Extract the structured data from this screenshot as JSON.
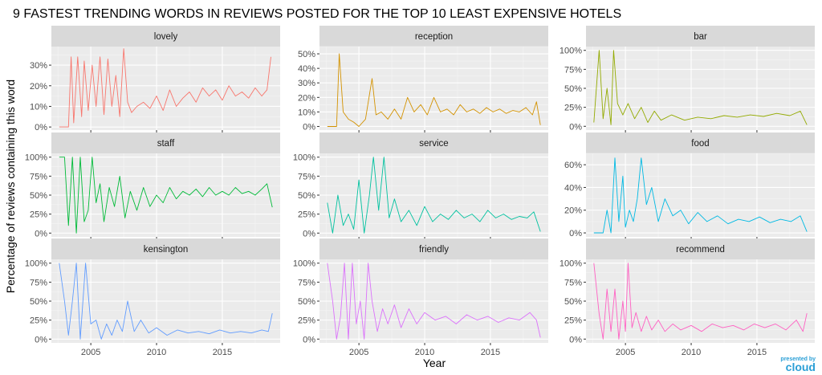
{
  "chart_data": {
    "type": "line",
    "title": "9 FASTEST TRENDING WORDS IN REVIEWS POSTED FOR THE TOP 10 LEAST EXPENSIVE HOTELS",
    "xlabel": "Year",
    "ylabel": "Percentage of reviews containing this word",
    "xlim": [
      2002,
      2019.4
    ],
    "x_ticks": [
      2005,
      2010,
      2015
    ],
    "x_tick_labels": [
      "2005",
      "2010",
      "2015"
    ],
    "grid": true,
    "legend": "none",
    "facet_layout": {
      "columns": 3,
      "rows": 3
    },
    "panels": [
      {
        "word": "lovely",
        "color": "#f8766d",
        "ylim": [
          -0.015,
          0.39
        ],
        "y_ticks": [
          0,
          0.1,
          0.2,
          0.3
        ],
        "y_tick_labels": [
          "0%",
          "10%",
          "20%",
          "30%"
        ],
        "x": [
          2002.6,
          2003.3,
          2003.5,
          2003.7,
          2004.0,
          2004.3,
          2004.5,
          2004.8,
          2005.1,
          2005.4,
          2005.7,
          2006.0,
          2006.3,
          2006.6,
          2006.9,
          2007.2,
          2007.5,
          2007.8,
          2008.1,
          2008.5,
          2009.0,
          2009.5,
          2010.0,
          2010.5,
          2011.0,
          2011.5,
          2012.0,
          2012.5,
          2013.0,
          2013.5,
          2014.0,
          2014.5,
          2015.0,
          2015.5,
          2016.0,
          2016.5,
          2017.0,
          2017.5,
          2018.0,
          2018.4,
          2018.7
        ],
        "y": [
          0,
          0,
          0.34,
          0.02,
          0.34,
          0.05,
          0.32,
          0.08,
          0.3,
          0.1,
          0.34,
          0.06,
          0.33,
          0.1,
          0.25,
          0.05,
          0.38,
          0.12,
          0.07,
          0.1,
          0.12,
          0.09,
          0.15,
          0.08,
          0.18,
          0.1,
          0.14,
          0.17,
          0.12,
          0.19,
          0.15,
          0.18,
          0.13,
          0.2,
          0.15,
          0.17,
          0.14,
          0.19,
          0.15,
          0.18,
          0.34
        ]
      },
      {
        "word": "reception",
        "color": "#d39200",
        "ylim": [
          -0.025,
          0.55
        ],
        "y_ticks": [
          0,
          0.1,
          0.2,
          0.3,
          0.4,
          0.5
        ],
        "y_tick_labels": [
          "0%",
          "10%",
          "20%",
          "30%",
          "40%",
          "50%"
        ],
        "x": [
          2002.6,
          2003.3,
          2003.5,
          2003.8,
          2004.2,
          2004.6,
          2005.0,
          2005.5,
          2006.0,
          2006.3,
          2006.7,
          2007.2,
          2007.7,
          2008.2,
          2008.7,
          2009.2,
          2009.7,
          2010.2,
          2010.7,
          2011.2,
          2011.7,
          2012.2,
          2012.7,
          2013.2,
          2013.7,
          2014.2,
          2014.7,
          2015.2,
          2015.7,
          2016.2,
          2016.7,
          2017.2,
          2017.7,
          2018.2,
          2018.5,
          2018.8
        ],
        "y": [
          0,
          0,
          0.5,
          0.1,
          0.05,
          0.03,
          0.0,
          0.05,
          0.33,
          0.08,
          0.1,
          0.05,
          0.12,
          0.05,
          0.2,
          0.1,
          0.15,
          0.08,
          0.2,
          0.1,
          0.12,
          0.08,
          0.15,
          0.1,
          0.12,
          0.09,
          0.13,
          0.1,
          0.12,
          0.09,
          0.11,
          0.1,
          0.13,
          0.08,
          0.17,
          0.01
        ]
      },
      {
        "word": "bar",
        "color": "#93aa00",
        "ylim": [
          -0.05,
          1.05
        ],
        "y_ticks": [
          0,
          0.25,
          0.5,
          0.75,
          1.0
        ],
        "y_tick_labels": [
          "0%",
          "25%",
          "50%",
          "75%",
          "100%"
        ],
        "x": [
          2002.6,
          2003.0,
          2003.3,
          2003.6,
          2003.9,
          2004.1,
          2004.4,
          2004.8,
          2005.2,
          2005.7,
          2006.2,
          2006.7,
          2007.2,
          2007.7,
          2008.5,
          2009.5,
          2010.5,
          2011.5,
          2012.5,
          2013.5,
          2014.5,
          2015.5,
          2016.5,
          2017.5,
          2018.3,
          2018.8
        ],
        "y": [
          0.05,
          1.0,
          0.1,
          0.5,
          0.02,
          1.0,
          0.3,
          0.15,
          0.3,
          0.1,
          0.25,
          0.05,
          0.2,
          0.08,
          0.15,
          0.08,
          0.12,
          0.1,
          0.14,
          0.12,
          0.15,
          0.13,
          0.17,
          0.14,
          0.2,
          0.02
        ]
      },
      {
        "word": "staff",
        "color": "#00ba38",
        "ylim": [
          -0.05,
          1.05
        ],
        "y_ticks": [
          0,
          0.25,
          0.5,
          0.75,
          1.0
        ],
        "y_tick_labels": [
          "0%",
          "25%",
          "50%",
          "75%",
          "100%"
        ],
        "x": [
          2002.6,
          2003.0,
          2003.3,
          2003.6,
          2003.9,
          2004.2,
          2004.5,
          2004.8,
          2005.1,
          2005.4,
          2005.7,
          2006.0,
          2006.4,
          2006.8,
          2007.2,
          2007.6,
          2008.0,
          2008.5,
          2009.0,
          2009.5,
          2010.0,
          2010.5,
          2011.0,
          2011.5,
          2012.0,
          2012.5,
          2013.0,
          2013.5,
          2014.0,
          2014.5,
          2015.0,
          2015.5,
          2016.0,
          2016.5,
          2017.0,
          2017.5,
          2018.0,
          2018.4,
          2018.8
        ],
        "y": [
          1.0,
          1.0,
          0.1,
          1.0,
          0.0,
          1.0,
          0.15,
          0.3,
          1.0,
          0.4,
          0.65,
          0.15,
          0.6,
          0.35,
          0.75,
          0.2,
          0.55,
          0.3,
          0.6,
          0.35,
          0.5,
          0.4,
          0.6,
          0.45,
          0.55,
          0.5,
          0.58,
          0.48,
          0.6,
          0.5,
          0.55,
          0.5,
          0.6,
          0.52,
          0.55,
          0.5,
          0.58,
          0.65,
          0.34
        ]
      },
      {
        "word": "service",
        "color": "#00c19f",
        "ylim": [
          -0.05,
          1.05
        ],
        "y_ticks": [
          0,
          0.25,
          0.5,
          0.75,
          1.0
        ],
        "y_tick_labels": [
          "0%",
          "25%",
          "50%",
          "75%",
          "100%"
        ],
        "x": [
          2002.6,
          2003.0,
          2003.4,
          2003.8,
          2004.2,
          2004.6,
          2005.0,
          2005.4,
          2005.8,
          2006.1,
          2006.5,
          2006.9,
          2007.3,
          2007.7,
          2008.2,
          2008.8,
          2009.4,
          2010.0,
          2010.6,
          2011.2,
          2011.8,
          2012.4,
          2013.0,
          2013.6,
          2014.2,
          2014.8,
          2015.4,
          2016.0,
          2016.6,
          2017.2,
          2017.8,
          2018.3,
          2018.8
        ],
        "y": [
          0.4,
          0.0,
          0.5,
          0.1,
          0.25,
          0.05,
          0.7,
          0.0,
          0.5,
          1.0,
          0.3,
          1.0,
          0.2,
          0.45,
          0.15,
          0.3,
          0.1,
          0.35,
          0.15,
          0.25,
          0.18,
          0.3,
          0.2,
          0.25,
          0.15,
          0.3,
          0.2,
          0.25,
          0.18,
          0.22,
          0.2,
          0.28,
          0.02
        ]
      },
      {
        "word": "food",
        "color": "#00b9e3",
        "ylim": [
          -0.035,
          0.7
        ],
        "y_ticks": [
          0,
          0.2,
          0.4,
          0.6
        ],
        "y_tick_labels": [
          "0%",
          "20%",
          "40%",
          "60%"
        ],
        "x": [
          2002.6,
          2003.3,
          2003.6,
          2003.9,
          2004.2,
          2004.5,
          2004.8,
          2005.0,
          2005.3,
          2005.6,
          2005.9,
          2006.2,
          2006.6,
          2007.0,
          2007.5,
          2008.0,
          2008.6,
          2009.2,
          2009.8,
          2010.5,
          2011.2,
          2012.0,
          2012.8,
          2013.6,
          2014.4,
          2015.2,
          2016.0,
          2016.8,
          2017.6,
          2018.3,
          2018.8
        ],
        "y": [
          0,
          0,
          0.2,
          0.0,
          0.66,
          0.1,
          0.5,
          0.05,
          0.2,
          0.1,
          0.3,
          0.66,
          0.25,
          0.4,
          0.1,
          0.3,
          0.15,
          0.2,
          0.08,
          0.18,
          0.1,
          0.15,
          0.08,
          0.12,
          0.1,
          0.14,
          0.09,
          0.12,
          0.1,
          0.15,
          0.01
        ]
      },
      {
        "word": "kensington",
        "color": "#619cff",
        "ylim": [
          -0.05,
          1.05
        ],
        "y_ticks": [
          0,
          0.25,
          0.5,
          0.75,
          1.0
        ],
        "y_tick_labels": [
          "0%",
          "25%",
          "50%",
          "75%",
          "100%"
        ],
        "x": [
          2002.6,
          2003.0,
          2003.3,
          2003.6,
          2003.9,
          2004.2,
          2004.6,
          2005.0,
          2005.4,
          2005.8,
          2006.2,
          2006.6,
          2007.0,
          2007.4,
          2007.8,
          2008.3,
          2008.8,
          2009.4,
          2010.0,
          2010.8,
          2011.6,
          2012.4,
          2013.2,
          2014.0,
          2014.8,
          2015.6,
          2016.4,
          2017.2,
          2018.0,
          2018.5,
          2018.8
        ],
        "y": [
          1.0,
          0.5,
          0.05,
          0.5,
          1.0,
          0.0,
          1.0,
          0.2,
          0.25,
          0.0,
          0.2,
          0.05,
          0.25,
          0.1,
          0.5,
          0.1,
          0.25,
          0.08,
          0.15,
          0.05,
          0.12,
          0.08,
          0.1,
          0.07,
          0.12,
          0.08,
          0.1,
          0.08,
          0.12,
          0.1,
          0.34
        ]
      },
      {
        "word": "friendly",
        "color": "#db72fb",
        "ylim": [
          -0.05,
          1.05
        ],
        "y_ticks": [
          0,
          0.25,
          0.5,
          0.75,
          1.0
        ],
        "y_tick_labels": [
          "0%",
          "25%",
          "50%",
          "75%",
          "100%"
        ],
        "x": [
          2002.6,
          2003.0,
          2003.3,
          2003.6,
          2003.9,
          2004.2,
          2004.5,
          2004.8,
          2005.1,
          2005.4,
          2005.7,
          2006.0,
          2006.4,
          2006.8,
          2007.2,
          2007.7,
          2008.2,
          2008.8,
          2009.4,
          2010.0,
          2010.8,
          2011.6,
          2012.4,
          2013.2,
          2014.0,
          2014.8,
          2015.6,
          2016.4,
          2017.2,
          2018.0,
          2018.5,
          2018.8
        ],
        "y": [
          1.0,
          0.5,
          0.0,
          0.3,
          1.0,
          0.0,
          1.0,
          0.2,
          0.5,
          0.0,
          1.0,
          0.5,
          0.1,
          0.4,
          0.2,
          0.45,
          0.15,
          0.4,
          0.2,
          0.35,
          0.25,
          0.3,
          0.2,
          0.32,
          0.25,
          0.3,
          0.22,
          0.28,
          0.25,
          0.35,
          0.25,
          0.02
        ]
      },
      {
        "word": "recommend",
        "color": "#ff61c3",
        "ylim": [
          -0.05,
          1.05
        ],
        "y_ticks": [
          0,
          0.25,
          0.5,
          0.75,
          1.0
        ],
        "y_tick_labels": [
          "0%",
          "25%",
          "50%",
          "75%",
          "100%"
        ],
        "x": [
          2002.6,
          2003.0,
          2003.3,
          2003.6,
          2003.9,
          2004.2,
          2004.5,
          2004.8,
          2005.0,
          2005.2,
          2005.5,
          2005.8,
          2006.2,
          2006.6,
          2007.0,
          2007.5,
          2008.0,
          2008.6,
          2009.2,
          2010.0,
          2010.8,
          2011.6,
          2012.4,
          2013.2,
          2014.0,
          2014.8,
          2015.6,
          2016.4,
          2017.2,
          2018.0,
          2018.5,
          2018.8
        ],
        "y": [
          1.0,
          0.33,
          0.0,
          0.66,
          0.1,
          0.66,
          0.0,
          0.5,
          0.1,
          1.0,
          0.15,
          0.35,
          0.1,
          0.3,
          0.12,
          0.25,
          0.1,
          0.2,
          0.12,
          0.18,
          0.1,
          0.2,
          0.15,
          0.18,
          0.12,
          0.2,
          0.15,
          0.2,
          0.12,
          0.25,
          0.1,
          0.34
        ]
      }
    ]
  },
  "logo": {
    "top": "presented by",
    "main": "cloud"
  }
}
